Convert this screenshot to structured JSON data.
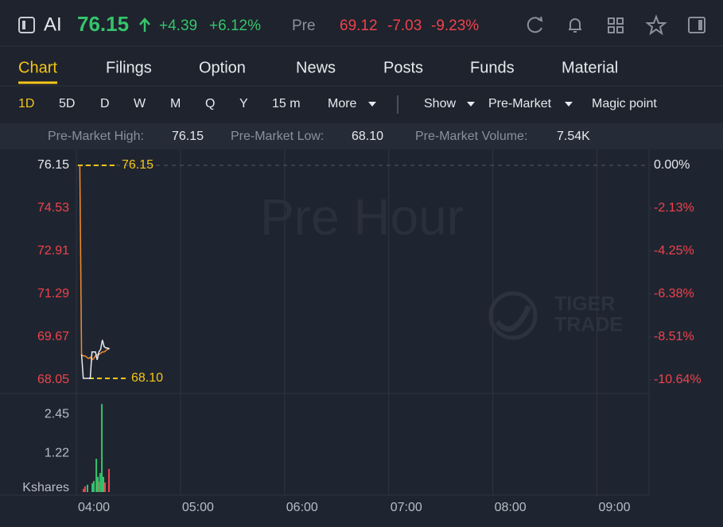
{
  "header": {
    "symbol": "AI",
    "price": "76.15",
    "change": "+4.39",
    "change_pct": "+6.12%",
    "session": "Pre",
    "session_price": "69.12",
    "session_change": "-7.03",
    "session_change_pct": "-9.23%"
  },
  "tabs": [
    "Chart",
    "Filings",
    "Option",
    "News",
    "Posts",
    "Funds",
    "Material"
  ],
  "periods": [
    "1D",
    "5D",
    "D",
    "W",
    "M",
    "Q",
    "Y",
    "15 m",
    "More"
  ],
  "controls": [
    "Show",
    "Pre-Market",
    "Magic point"
  ],
  "stats": [
    {
      "label": "Pre-Market High:",
      "value": "76.15"
    },
    {
      "label": "Pre-Market Low:",
      "value": "68.10"
    },
    {
      "label": "Pre-Market Volume:",
      "value": "7.54K"
    }
  ],
  "chart_data": {
    "type": "line",
    "watermark": "Pre Hour",
    "brand": [
      "TIGER",
      "TRADE"
    ],
    "x": [
      2,
      3,
      4,
      5,
      6,
      7,
      8,
      9,
      10,
      11,
      12,
      13,
      14,
      15,
      16,
      17,
      18,
      19
    ],
    "series": [
      {
        "color": "#f08c2e",
        "values": [
          76.15,
          69.0,
          68.95,
          68.95,
          68.9,
          68.85,
          68.9,
          68.8,
          68.85,
          68.95,
          69.0,
          69.0,
          69.05,
          69.1,
          69.1,
          69.15,
          69.2,
          69.25
        ]
      },
      {
        "color": "#e6eaf0",
        "values": [
          null,
          69.0,
          68.1,
          68.1,
          68.1,
          68.1,
          68.1,
          69.1,
          69.1,
          69.1,
          68.8,
          69.1,
          69.2,
          69.55,
          69.3,
          69.25,
          69.25,
          69.2
        ]
      }
    ],
    "xlim": [
      0,
      330
    ],
    "xticks": [
      {
        "value": 0,
        "label": "04:00"
      },
      {
        "value": 60,
        "label": "05:00"
      },
      {
        "value": 120,
        "label": "06:00"
      },
      {
        "value": 180,
        "label": "07:00"
      },
      {
        "value": 240,
        "label": "08:00"
      },
      {
        "value": 300,
        "label": "09:00"
      }
    ],
    "ylim": [
      67.68,
      76.51
    ],
    "yticks": [
      76.15,
      74.53,
      72.91,
      71.29,
      69.67,
      68.05
    ],
    "y2lim": [
      -11.12,
      0.47
    ],
    "y2ticks": [
      {
        "value": 0,
        "label": "0.00%"
      },
      {
        "value": -2.13,
        "label": "-2.13%"
      },
      {
        "value": -4.25,
        "label": "-4.25%"
      },
      {
        "value": -6.38,
        "label": "-6.38%"
      },
      {
        "value": -8.51,
        "label": "-8.51%"
      },
      {
        "value": -10.64,
        "label": "-10.64%"
      }
    ],
    "high": 76.15,
    "low": {
      "value": 68.1,
      "label": "68.10"
    },
    "grid": true,
    "volume": {
      "ylim": [
        0,
        2.99
      ],
      "yticks": [
        2.45,
        1.22
      ],
      "unit": "Kshares",
      "x": [
        4.1,
        5.0,
        6.4,
        9.2,
        10.1,
        11.5,
        12.4,
        13.3,
        13.7,
        14.7,
        15.6,
        16.5,
        18.8
      ],
      "values": [
        0.1,
        0.18,
        0.23,
        0.28,
        0.35,
        1.05,
        0.48,
        0.33,
        0.6,
        2.78,
        0.48,
        0.3,
        0.73
      ],
      "colors": [
        "#f0424c",
        "#f0424c",
        "#36c46c",
        "#36c46c",
        "#36c46c",
        "#36c46c",
        "#36c46c",
        "#f0424c",
        "#36c46c",
        "#36c46c",
        "#36c46c",
        "#f0424c",
        "#f0424c"
      ]
    }
  }
}
